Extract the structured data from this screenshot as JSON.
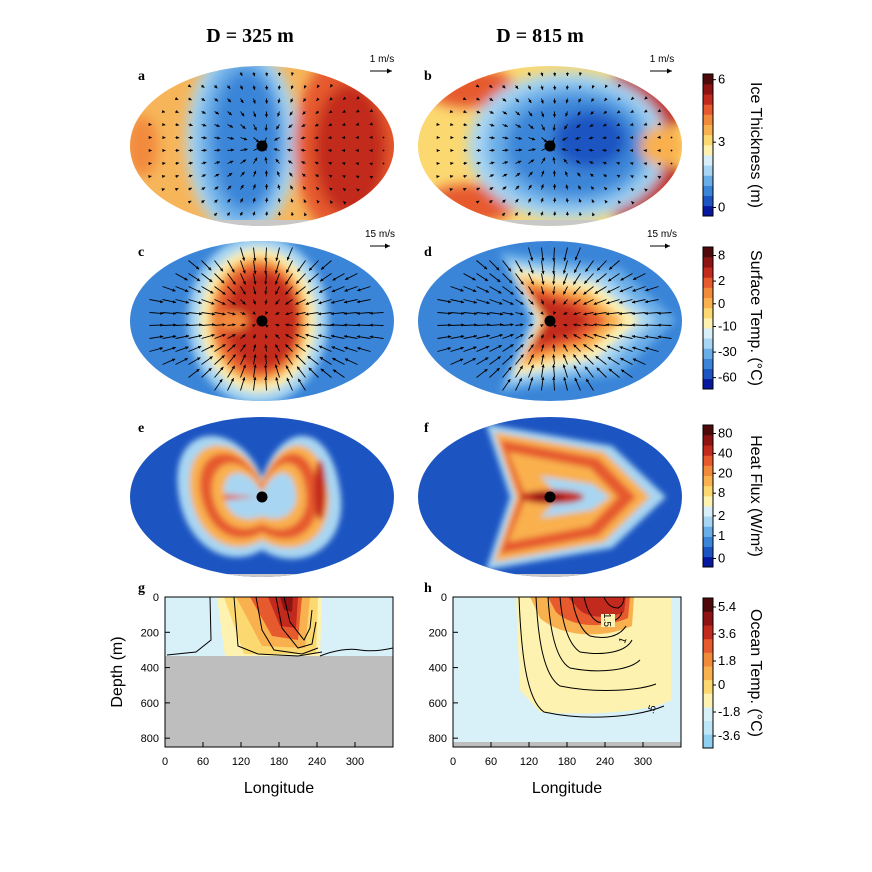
{
  "figure": {
    "column_titles": [
      "D = 325 m",
      "D = 815 m"
    ],
    "panel_letters": [
      "a",
      "b",
      "c",
      "d",
      "e",
      "f",
      "g",
      "h"
    ],
    "reference_vectors": [
      "1 m/s",
      "1 m/s",
      "15 m/s",
      "15 m/s"
    ]
  },
  "colorbars": [
    {
      "name": "ice-thickness",
      "title": "Ice Thickness (m)",
      "ticks": [
        "6",
        "3",
        "0"
      ],
      "colors": [
        "#08189e",
        "#1c55c2",
        "#3a85d8",
        "#6aaee8",
        "#a8d6f2",
        "#d8eef8",
        "#fdf2b0",
        "#fcd870",
        "#f9b04e",
        "#f28a3c",
        "#e65a2e",
        "#c22a1e",
        "#8e1414",
        "#4e0a0a"
      ]
    },
    {
      "name": "surface-temp",
      "title": "Surface Temp. (°C)",
      "ticks": [
        "8",
        "2",
        "0",
        "-10",
        "-30",
        "-60"
      ],
      "colors": [
        "#08189e",
        "#1c55c2",
        "#3a85d8",
        "#6aaee8",
        "#a8d6f2",
        "#d8eef8",
        "#fdf2b0",
        "#fcd870",
        "#f9b04e",
        "#f28a3c",
        "#e65a2e",
        "#c22a1e",
        "#8e1414",
        "#4e0a0a"
      ]
    },
    {
      "name": "heat-flux",
      "title": "Heat Flux (W/m²)",
      "ticks": [
        "80",
        "40",
        "20",
        "8",
        "2",
        "1",
        "0"
      ],
      "colors": [
        "#08189e",
        "#1c55c2",
        "#3a85d8",
        "#6aaee8",
        "#a8d6f2",
        "#d8eef8",
        "#fdf2b0",
        "#fcd870",
        "#f9b04e",
        "#f28a3c",
        "#e65a2e",
        "#c22a1e",
        "#8e1414",
        "#4e0a0a"
      ]
    },
    {
      "name": "ocean-temp",
      "title": "Ocean Temp. (°C)",
      "ticks": [
        "5.4",
        "3.6",
        "1.8",
        "0",
        "-1.8",
        "-3.6"
      ],
      "colors": [
        "#8fd0f0",
        "#bfe6f6",
        "#d8f0f8",
        "#fdf2b0",
        "#fcd870",
        "#f9b04e",
        "#f28a3c",
        "#e65a2e",
        "#c22a1e",
        "#8e1414",
        "#4e0a0a"
      ]
    }
  ],
  "chart_data": [
    {
      "type": "heatmap",
      "panel": "a",
      "title": "D = 325 m",
      "quantity": "Ice thickness (m)",
      "description_range": [
        0,
        6
      ],
      "vector_field": "surface ocean currents",
      "reference_vector": "1 m/s"
    },
    {
      "type": "heatmap",
      "panel": "b",
      "title": "D = 815 m",
      "quantity": "Ice thickness (m)",
      "description_range": [
        0,
        6
      ],
      "vector_field": "surface ocean currents",
      "reference_vector": "1 m/s"
    },
    {
      "type": "heatmap",
      "panel": "c",
      "quantity": "Surface temperature (°C)",
      "colorbar_levels": [
        -60,
        -30,
        -10,
        0,
        2,
        8
      ],
      "vector_field": "surface winds",
      "reference_vector": "15 m/s"
    },
    {
      "type": "heatmap",
      "panel": "d",
      "quantity": "Surface temperature (°C)",
      "colorbar_levels": [
        -60,
        -30,
        -10,
        0,
        2,
        8
      ],
      "vector_field": "surface winds",
      "reference_vector": "15 m/s"
    },
    {
      "type": "heatmap",
      "panel": "e",
      "quantity": "Heat flux (W/m²)",
      "colorbar_levels": [
        0,
        1,
        2,
        8,
        20,
        40,
        80
      ]
    },
    {
      "type": "heatmap",
      "panel": "f",
      "quantity": "Heat flux (W/m²)",
      "colorbar_levels": [
        0,
        1,
        2,
        8,
        20,
        40,
        80
      ]
    },
    {
      "type": "heatmap",
      "panel": "g",
      "quantity": "Ocean temperature (°C)",
      "xlabel": "Longitude",
      "ylabel": "Depth (m)",
      "xlim": [
        0,
        360
      ],
      "ylim": [
        850,
        0
      ],
      "xticks": [
        0,
        60,
        120,
        180,
        240,
        300
      ],
      "yticks": [
        0,
        200,
        400,
        600,
        800
      ],
      "ocean_floor_depth_m": 325
    },
    {
      "type": "heatmap",
      "panel": "h",
      "quantity": "Ocean temperature (°C)",
      "xlabel": "Longitude",
      "ylabel": "Depth (m)",
      "xlim": [
        0,
        360
      ],
      "ylim": [
        850,
        0
      ],
      "xticks": [
        0,
        60,
        120,
        180,
        240,
        300
      ],
      "yticks": [
        0,
        200,
        400,
        600,
        800
      ],
      "ocean_floor_depth_m": 815,
      "contour_labels": [
        "1.5",
        "1",
        ".5"
      ]
    }
  ]
}
